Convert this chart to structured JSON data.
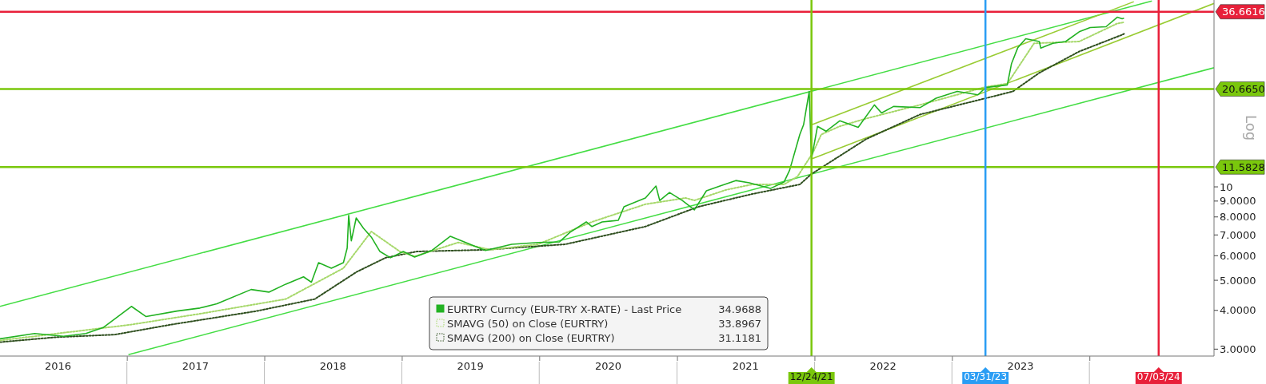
{
  "chart_data": {
    "type": "line",
    "log": "y",
    "legend": "bottom",
    "annotations": [
      "Log"
    ],
    "xlim": [
      "2016-01-30",
      "2024-11-27"
    ],
    "xticks": [
      {
        "value": "2016-07-01",
        "label": "2016"
      },
      {
        "value": "2017-07-01",
        "label": "2017"
      },
      {
        "value": "2018-07-01",
        "label": "2018"
      },
      {
        "value": "2019-07-01",
        "label": "2019"
      },
      {
        "value": "2020-07-01",
        "label": "2020"
      },
      {
        "value": "2021-07-01",
        "label": "2021"
      },
      {
        "value": "2022-07-01",
        "label": "2022"
      },
      {
        "value": "2023-07-01",
        "label": "2023"
      },
      {
        "value": "2017-01-01",
        "label": null
      },
      {
        "value": "2018-01-01",
        "label": null
      },
      {
        "value": "2019-01-01",
        "label": null
      },
      {
        "value": "2020-01-01",
        "label": null
      },
      {
        "value": "2021-01-01",
        "label": null
      },
      {
        "value": "2022-01-01",
        "label": null
      },
      {
        "value": "2023-01-01",
        "label": null
      },
      {
        "value": "2024-01-01",
        "label": null
      }
    ],
    "ylim": [
      2.85,
      40
    ],
    "yticks": [
      {
        "value": 3,
        "label": "3.0000"
      },
      {
        "value": 4,
        "label": "4.0000"
      },
      {
        "value": 5,
        "label": "5.0000"
      },
      {
        "value": 6,
        "label": "6.0000"
      },
      {
        "value": 7,
        "label": "7.0000"
      },
      {
        "value": 8,
        "label": "8.0000"
      },
      {
        "value": 9,
        "label": "9.0000"
      },
      10
    ],
    "ref_lines": [
      {
        "axis": "y",
        "value": 36.6616,
        "label": "36.6616",
        "color": "#e8203a"
      },
      {
        "axis": "y",
        "value": 20.665,
        "label": "20.6650",
        "color": "#7ac70c"
      },
      {
        "axis": "y",
        "value": 11.5828,
        "label": "11.5828",
        "color": "#7ac70c"
      },
      {
        "axis": "x",
        "value": "2021-12-24",
        "label": "12/24/21",
        "color": "#7ac70c"
      },
      {
        "axis": "x",
        "value": "2023-03-31",
        "label": "03/31/23",
        "color": "#2a9df4"
      },
      {
        "axis": "x",
        "value": "2024-07-03",
        "label": "07/03/24",
        "color": "#e8203a"
      }
    ],
    "series": [
      {
        "color": "#44dd44",
        "x": [
          "2016-01-30",
          "2024-06-15"
        ],
        "values": [
          4.12,
          39.7
        ]
      },
      {
        "color": "#44dd44",
        "x": [
          "2017-01-05",
          "2024-11-27"
        ],
        "values": [
          2.88,
          24.2
        ]
      },
      {
        "color": "#99cc33",
        "x": [
          "2021-12-24",
          "2024-04-28"
        ],
        "values": [
          15.85,
          39.5
        ]
      },
      {
        "color": "#99cc33",
        "x": [
          "2021-12-24",
          "2024-11-27"
        ],
        "values": [
          12.3,
          39.0
        ]
      },
      {
        "name": "SMAVG (200)  on Close (EURTRY) 31.1181",
        "color": "#2f4f1f",
        "line_style": "dotted",
        "x": [
          "2016-01-30",
          "2016-06-29",
          "2016-11-29",
          "2017-04-29",
          "2017-12-12",
          "2018-05-15",
          "2018-09-03",
          "2018-11-19",
          "2019-02-10",
          "2019-08-11",
          "2020-03-10",
          "2020-10-09",
          "2021-02-27",
          "2021-07-19",
          "2021-11-23",
          "2021-12-24",
          "2022-05-18",
          "2022-10-08",
          "2023-04-01",
          "2023-06-12",
          "2023-08-21",
          "2023-12-05",
          "2024-03-28",
          "2024-04-02"
        ],
        "values": [
          3.16,
          3.28,
          3.34,
          3.6,
          3.98,
          4.35,
          5.32,
          5.91,
          6.19,
          6.27,
          6.53,
          7.45,
          8.63,
          9.48,
          10.18,
          11.0,
          14.25,
          17.1,
          19.3,
          20.3,
          23.3,
          27.3,
          30.9,
          31.1181
        ]
      },
      {
        "name": "SMAVG (50)  on Close (EURTRY) 33.8967",
        "color": "#a6d86a",
        "line_style": "dotted",
        "x": [
          "2016-01-30",
          "2017-01-13",
          "2017-07-14",
          "2018-02-27",
          "2018-07-30",
          "2018-10-12",
          "2018-12-27",
          "2019-02-04",
          "2019-05-31",
          "2019-08-24",
          "2019-12-29",
          "2020-05-20",
          "2020-10-09",
          "2021-01-24",
          "2021-02-16",
          "2021-05-10",
          "2021-07-19",
          "2021-10-12",
          "2021-11-17",
          "2021-12-28",
          "2022-01-19",
          "2022-03-09",
          "2022-05-18",
          "2022-10-08",
          "2023-04-01",
          "2023-05-28",
          "2023-08-07",
          "2023-12-05",
          "2024-03-15",
          "2024-04-02"
        ],
        "values": [
          3.2,
          3.6,
          3.9,
          4.35,
          5.47,
          7.18,
          6.19,
          5.97,
          6.62,
          6.27,
          6.53,
          7.71,
          8.79,
          9.21,
          9.04,
          9.77,
          10.18,
          10.18,
          10.8,
          12.9,
          14.75,
          15.67,
          16.6,
          18.37,
          21.0,
          21.5,
          29.0,
          29.4,
          33.6,
          33.8967
        ]
      },
      {
        "name": "EURTRY Curncy (EUR-TRY X-RATE) - Last Price 34.9688",
        "color": "#22b222",
        "x": [
          "2016-01-30",
          "2016-05-01",
          "2016-07-17",
          "2016-09-14",
          "2016-10-30",
          "2017-01-13",
          "2017-02-21",
          "2017-05-14",
          "2017-07-14",
          "2017-08-28",
          "2017-11-27",
          "2018-01-13",
          "2018-02-27",
          "2018-04-15",
          "2018-05-06",
          "2018-05-25",
          "2018-06-28",
          "2018-07-30",
          "2018-08-09",
          "2018-08-13",
          "2018-08-20",
          "2018-09-02",
          "2018-09-21",
          "2018-10-12",
          "2018-11-04",
          "2018-12-02",
          "2019-01-05",
          "2019-02-04",
          "2019-03-22",
          "2019-05-10",
          "2019-08-11",
          "2019-10-20",
          "2019-12-29",
          "2020-02-24",
          "2020-03-23",
          "2020-05-05",
          "2020-05-20",
          "2020-06-16",
          "2020-07-29",
          "2020-08-13",
          "2020-10-09",
          "2020-11-06",
          "2020-11-16",
          "2020-12-12",
          "2021-01-15",
          "2021-02-16",
          "2021-03-20",
          "2021-04-25",
          "2021-06-06",
          "2021-07-12",
          "2021-09-06",
          "2021-10-12",
          "2021-10-27",
          "2021-11-23",
          "2021-12-03",
          "2021-12-18",
          "2021-12-24",
          "2022-01-09",
          "2022-02-01",
          "2022-03-09",
          "2022-04-27",
          "2022-06-09",
          "2022-06-28",
          "2022-07-30",
          "2022-10-08",
          "2022-11-20",
          "2023-01-15",
          "2023-03-11",
          "2023-04-01",
          "2023-05-28",
          "2023-06-08",
          "2023-06-25",
          "2023-07-16",
          "2023-08-21",
          "2023-08-25",
          "2023-09-26",
          "2023-10-30",
          "2023-12-05",
          "2024-01-03",
          "2024-02-14",
          "2024-03-15",
          "2024-03-28",
          "2024-04-02"
        ],
        "values": [
          3.24,
          3.37,
          3.3,
          3.37,
          3.52,
          4.12,
          3.82,
          3.98,
          4.07,
          4.2,
          4.67,
          4.58,
          4.86,
          5.13,
          4.93,
          5.7,
          5.47,
          5.7,
          6.35,
          8.09,
          6.7,
          7.94,
          7.36,
          6.89,
          6.19,
          5.91,
          6.19,
          5.94,
          6.24,
          6.93,
          6.24,
          6.53,
          6.62,
          6.65,
          7.14,
          7.71,
          7.45,
          7.71,
          7.8,
          8.63,
          9.21,
          10.06,
          9.04,
          9.59,
          9.04,
          8.43,
          9.71,
          10.06,
          10.48,
          10.3,
          9.88,
          10.36,
          11.32,
          14.75,
          15.85,
          20.3,
          12.3,
          15.67,
          15.1,
          16.33,
          15.56,
          18.37,
          17.3,
          18.15,
          18.0,
          19.3,
          20.3,
          19.8,
          20.9,
          21.3,
          24.9,
          28.1,
          30.0,
          29.4,
          28.0,
          29.0,
          29.4,
          31.6,
          32.6,
          32.8,
          35.2,
          34.8,
          34.9688
        ]
      }
    ]
  }
}
